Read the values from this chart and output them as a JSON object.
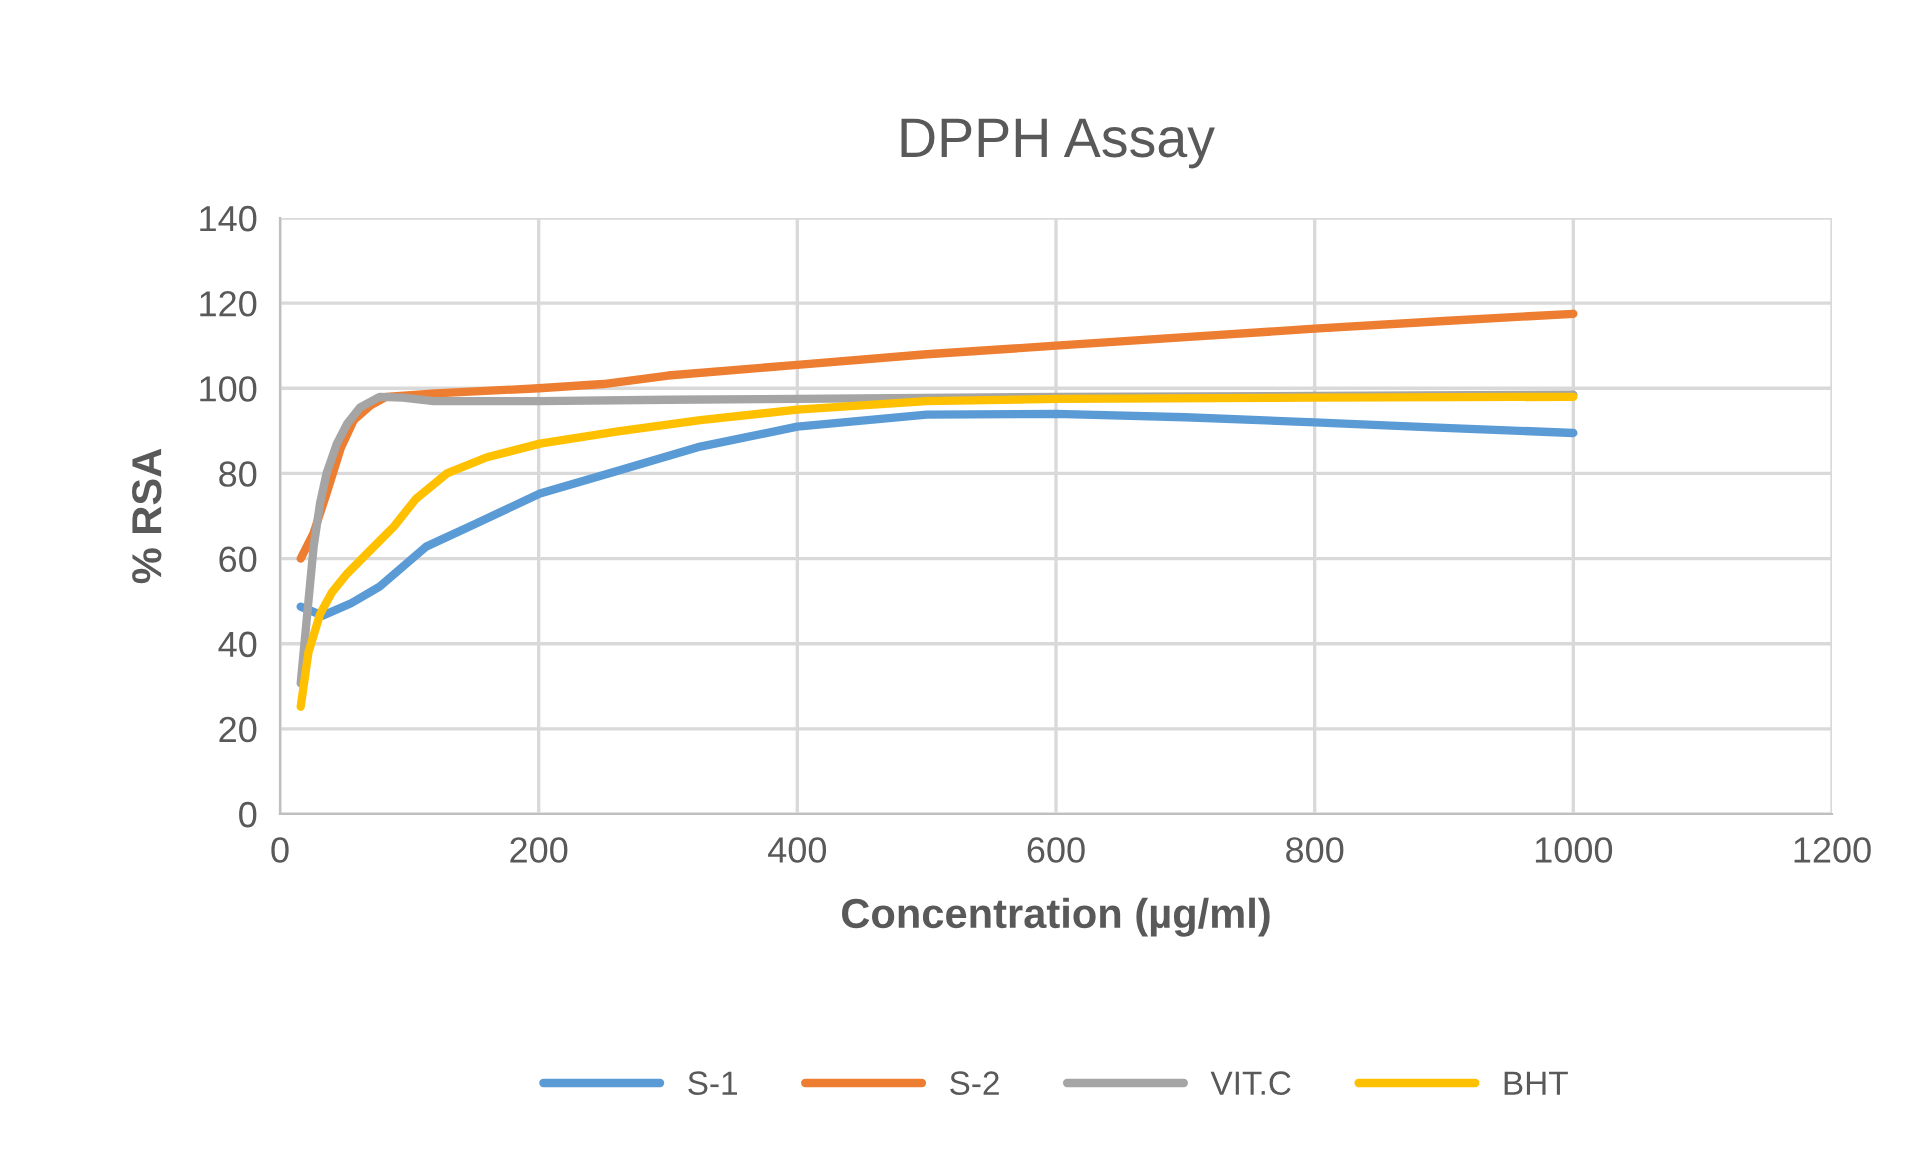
{
  "chart_data": {
    "type": "line",
    "title": "DPPH Assay",
    "xlabel": "Concentration (µg/ml)",
    "ylabel": "% RSA",
    "xlim": [
      0,
      1200
    ],
    "xticks": [
      0,
      200,
      400,
      600,
      800,
      1000,
      1200
    ],
    "ylim": [
      0,
      140
    ],
    "yticks": [
      0,
      20,
      40,
      60,
      80,
      100,
      120,
      140
    ],
    "grid": true,
    "legend": "bottom",
    "marker": "none",
    "line_style": "solid",
    "series": [
      {
        "name": "S-1",
        "color": "#5b9bd5",
        "x": [
          16,
          33,
          55,
          77,
          113,
          150,
          201,
          260,
          325,
          400,
          500,
          600,
          700,
          800,
          900,
          1000
        ],
        "values": [
          48.7,
          46.6,
          49.5,
          53.4,
          62.8,
          68,
          75.3,
          80.5,
          86.3,
          91,
          93.8,
          94,
          93.2,
          92,
          90.7,
          89.5
        ]
      },
      {
        "name": "S-2",
        "color": "#ed7d31",
        "x": [
          16,
          26,
          36,
          47,
          57,
          70,
          82,
          120,
          200,
          250,
          300,
          400,
          500,
          600,
          700,
          800,
          900,
          1000
        ],
        "values": [
          60,
          66,
          75.3,
          86,
          92.5,
          96,
          98,
          98.8,
          100,
          101,
          103,
          105.5,
          108,
          110,
          112,
          114,
          115.8,
          117.5
        ]
      },
      {
        "name": "VIT.C",
        "color": "#a5a5a5",
        "x": [
          16,
          22,
          26,
          31,
          36,
          44,
          52,
          62,
          77,
          95,
          119,
          200,
          300,
          400,
          600,
          800,
          1000
        ],
        "values": [
          30.7,
          50,
          62.8,
          73,
          80,
          87,
          91.7,
          95.5,
          98,
          97.8,
          97,
          97,
          97.3,
          97.5,
          98,
          98.2,
          98.5
        ]
      },
      {
        "name": "BHT",
        "color": "#ffc000",
        "x": [
          16,
          22,
          31,
          40,
          52,
          70,
          88,
          105,
          129,
          160,
          201,
          260,
          325,
          400,
          500,
          600,
          800,
          1000
        ],
        "values": [
          25.2,
          38,
          47,
          52,
          56.5,
          62,
          67.5,
          74,
          80,
          83.8,
          87,
          89.8,
          92.5,
          95,
          97,
          97.5,
          97.8,
          98
        ]
      }
    ]
  }
}
